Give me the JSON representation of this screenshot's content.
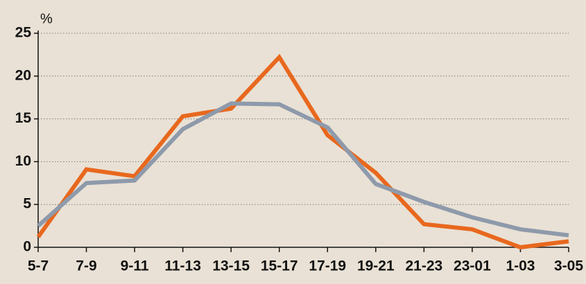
{
  "chart_data": {
    "type": "line",
    "y_unit": "%",
    "categories": [
      "5-7",
      "7-9",
      "9-11",
      "11-13",
      "13-15",
      "15-17",
      "17-19",
      "19-21",
      "21-23",
      "23-01",
      "1-03",
      "3-05"
    ],
    "series": [
      {
        "color": "#e8681e",
        "values": [
          1.2,
          9.1,
          8.3,
          15.3,
          16.2,
          22.2,
          13.1,
          8.7,
          2.7,
          2.1,
          0,
          0.7
        ]
      },
      {
        "color": "#8e9aab",
        "values": [
          2.5,
          7.5,
          7.8,
          13.8,
          16.8,
          16.7,
          14.0,
          7.4,
          5.3,
          3.5,
          2.1,
          1.4
        ]
      }
    ],
    "ylim": [
      0,
      25
    ],
    "yticks": [
      0,
      5,
      10,
      15,
      20,
      25
    ],
    "grid": true
  }
}
